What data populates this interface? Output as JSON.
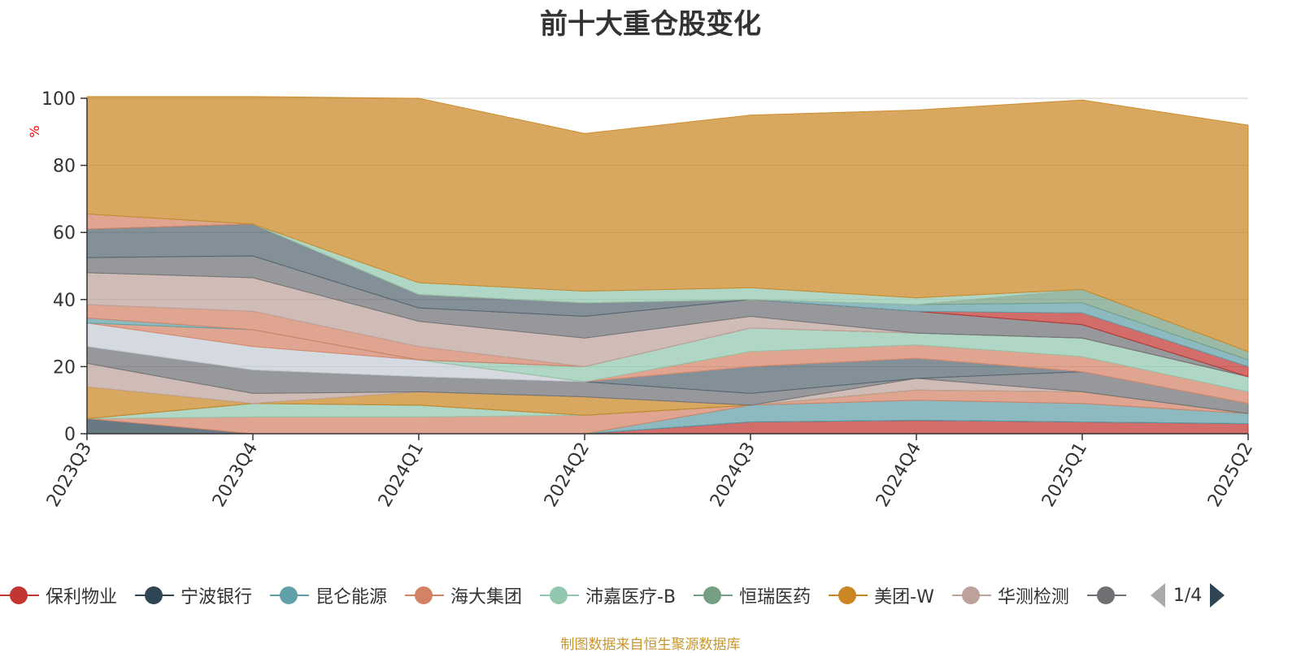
{
  "chart_data": {
    "type": "area",
    "title": "前十大重仓股变化",
    "ylabel": "%",
    "xlabel": "",
    "ylim": [
      0,
      100
    ],
    "yticks": [
      0,
      20,
      40,
      60,
      80,
      100
    ],
    "stacked": true,
    "grid": true,
    "categories": [
      "2023Q3",
      "2023Q4",
      "2024Q1",
      "2024Q2",
      "2024Q3",
      "2024Q4",
      "2025Q1",
      "2025Q2"
    ],
    "series": [
      {
        "name": "保利物业",
        "color": "#c23531",
        "values": [
          0,
          0,
          0,
          0,
          3.5,
          4,
          3.5,
          3
        ]
      },
      {
        "name": "宁波银行",
        "color": "#2f4554",
        "values": [
          4.5,
          0,
          0,
          0,
          0,
          0,
          0,
          0
        ]
      },
      {
        "name": "昆仑能源",
        "color": "#61a0a8",
        "values": [
          0,
          0,
          0,
          0,
          5,
          6,
          5.5,
          3
        ]
      },
      {
        "name": "海大集团",
        "color": "#d48265",
        "values": [
          0,
          5,
          5,
          5.5,
          0,
          3,
          3.5,
          0
        ]
      },
      {
        "name": "沛嘉医疗-B",
        "color": "#91c7ae",
        "values": [
          0,
          4,
          3.5,
          0,
          0,
          0,
          0,
          0
        ]
      },
      {
        "name": "恒瑞医药",
        "color": "#749f83",
        "values": [
          0,
          0,
          0,
          0,
          0,
          0,
          0,
          0
        ]
      },
      {
        "name": "美团-W",
        "color": "#ca8622",
        "values": [
          9.5,
          0,
          4,
          5.5,
          0,
          0,
          0,
          0
        ]
      },
      {
        "name": "华测检测",
        "color": "#bda29a",
        "values": [
          7,
          3,
          0,
          0,
          0,
          3.5,
          0,
          0
        ]
      },
      {
        "name": "",
        "color": "#6e7074",
        "values": [
          5,
          7,
          4.5,
          4.5,
          3.5,
          0,
          6,
          3
        ]
      },
      {
        "name": "",
        "color": "#546570",
        "values": [
          0,
          0,
          0,
          0,
          8,
          6,
          0,
          0
        ]
      },
      {
        "name": "",
        "color": "#c4ccd3",
        "values": [
          7,
          7,
          5,
          0,
          0,
          0,
          0,
          0
        ]
      },
      {
        "name": "",
        "color": "#d48265",
        "values": [
          0,
          5,
          0,
          0,
          4.5,
          4,
          4.5,
          3.5
        ]
      },
      {
        "name": "",
        "color": "#91c7ae",
        "values": [
          0,
          0,
          0,
          4.5,
          7,
          3.5,
          5.5,
          4.5
        ]
      },
      {
        "name": "",
        "color": "#61a0a8",
        "values": [
          1.5,
          0,
          0,
          0,
          0,
          0,
          0,
          0
        ]
      },
      {
        "name": "",
        "color": "#d48265",
        "values": [
          4,
          5.5,
          4,
          0,
          0,
          0,
          0,
          0
        ]
      },
      {
        "name": "",
        "color": "#bda29a",
        "values": [
          9.5,
          10,
          7.5,
          8.5,
          3.5,
          0,
          0,
          0
        ]
      },
      {
        "name": "",
        "color": "#6e7074",
        "values": [
          4.5,
          6.5,
          4,
          6.5,
          5,
          6.5,
          4,
          0
        ]
      },
      {
        "name": "",
        "color": "#546570",
        "values": [
          8.5,
          9.5,
          4,
          4,
          0,
          0,
          0,
          0
        ]
      },
      {
        "name": "",
        "color": "#c23531",
        "values": [
          0,
          0,
          0,
          0,
          0,
          0,
          3.5,
          3
        ]
      },
      {
        "name": "",
        "color": "#61a0a8",
        "values": [
          0,
          0,
          0,
          0,
          0,
          2,
          3,
          2
        ]
      },
      {
        "name": "",
        "color": "#749f83",
        "values": [
          0,
          0,
          0,
          0,
          0,
          0,
          4,
          2.5
        ]
      },
      {
        "name": "",
        "color": "#d48265",
        "values": [
          4.5,
          0,
          0,
          0,
          0,
          0,
          0,
          0
        ]
      },
      {
        "name": "",
        "color": "#91c7ae",
        "values": [
          0,
          0,
          3.5,
          3.5,
          3.5,
          2,
          0,
          0
        ]
      },
      {
        "name": "",
        "color": "#ca8622",
        "values": [
          35,
          38,
          55,
          47,
          51.5,
          56,
          56.5,
          67.5
        ]
      }
    ]
  },
  "legend": {
    "items": [
      {
        "label": "保利物业",
        "color": "#c23531"
      },
      {
        "label": "宁波银行",
        "color": "#2f4554"
      },
      {
        "label": "昆仑能源",
        "color": "#61a0a8"
      },
      {
        "label": "海大集团",
        "color": "#d48265"
      },
      {
        "label": "沛嘉医疗-B",
        "color": "#91c7ae"
      },
      {
        "label": "恒瑞医药",
        "color": "#749f83"
      },
      {
        "label": "美团-W",
        "color": "#ca8622"
      },
      {
        "label": "华测检测",
        "color": "#bda29a"
      },
      {
        "label": "",
        "color": "#6e7074"
      }
    ],
    "page": "1/4"
  },
  "footer": {
    "source": "制图数据来自恒生聚源数据库"
  }
}
